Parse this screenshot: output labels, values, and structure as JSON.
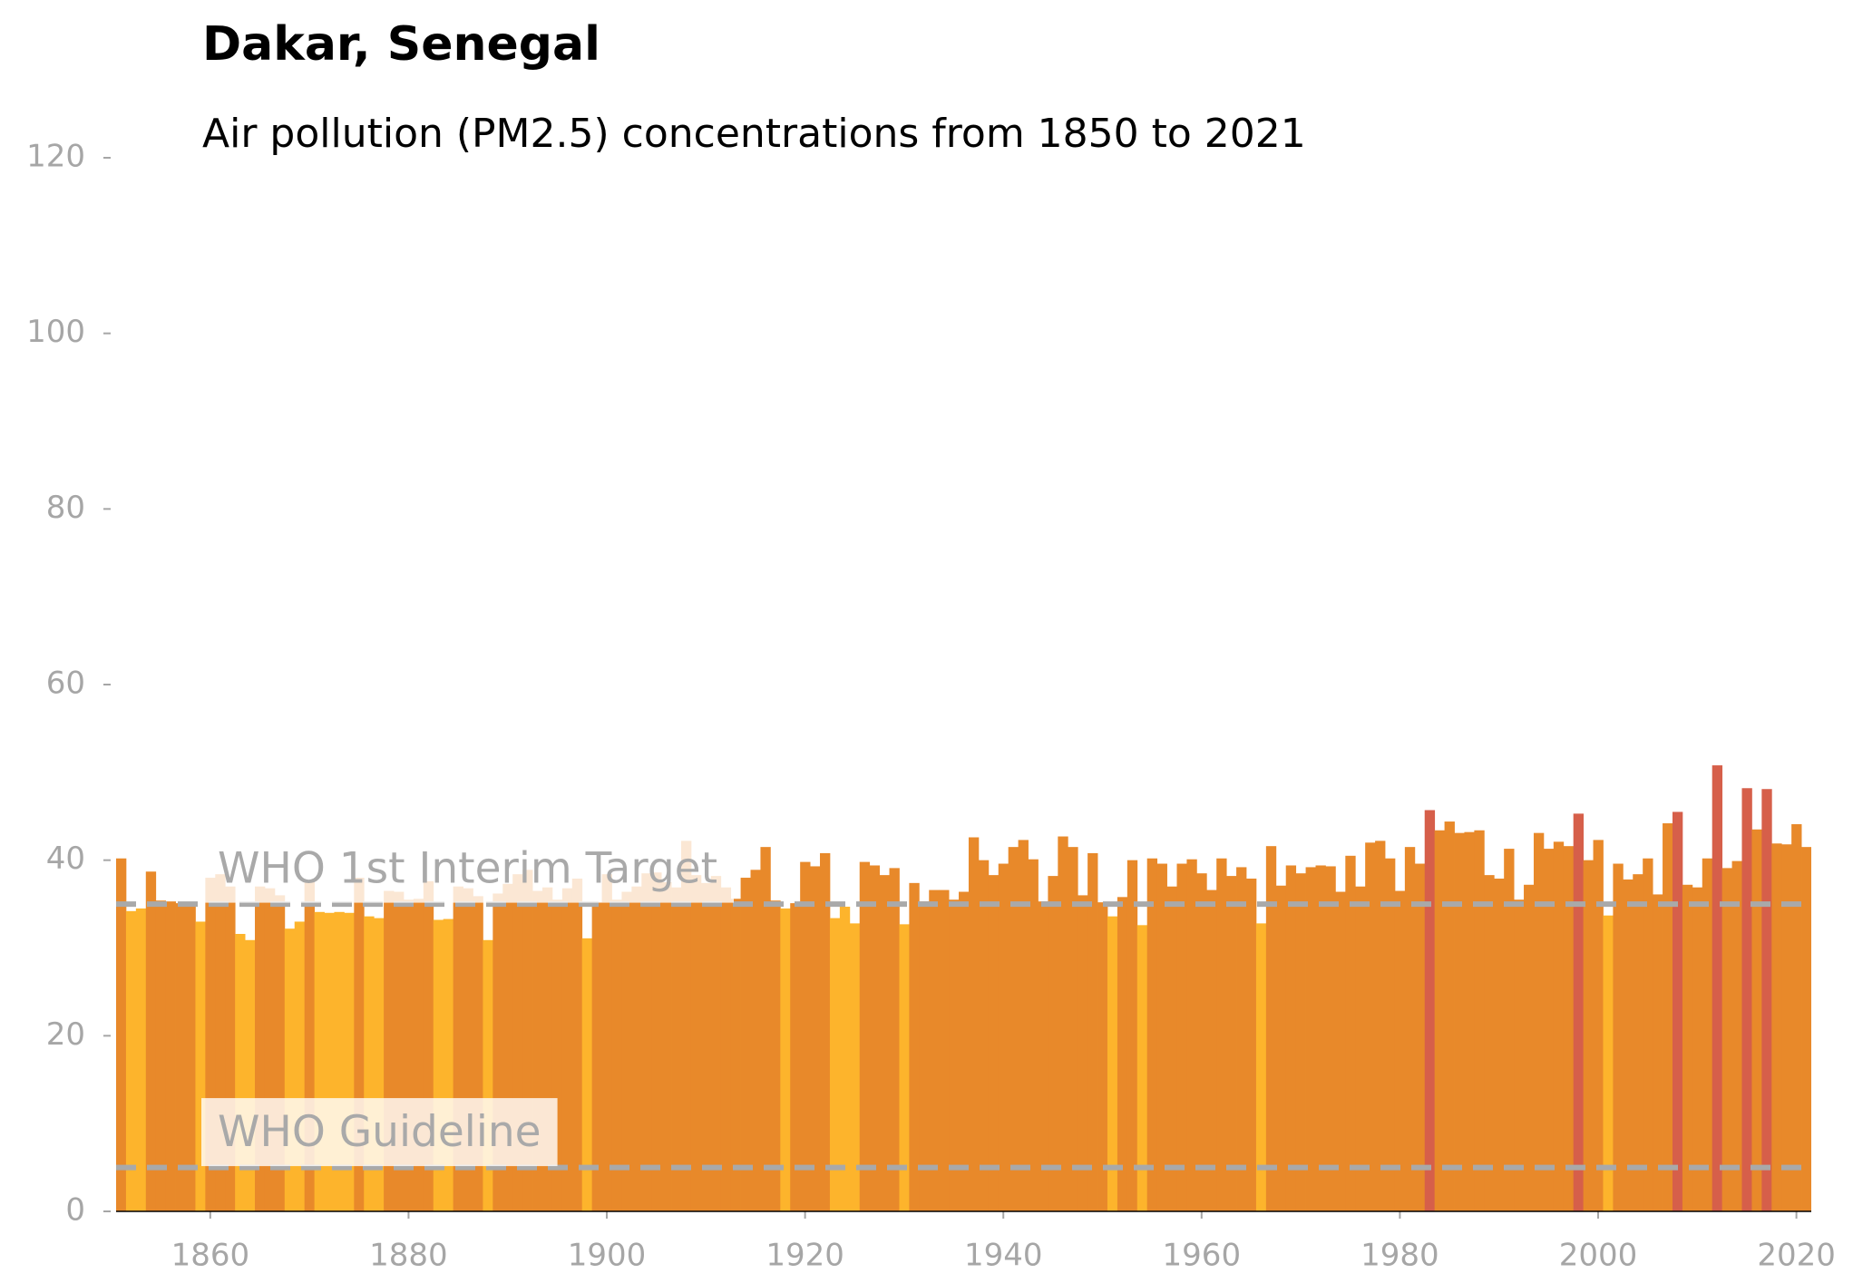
{
  "chart_data": {
    "type": "bar",
    "title": "Dakar, Senegal",
    "subtitle": "Air pollution (PM2.5) concentrations from 1850 to 2021",
    "x": [
      1850,
      1851,
      1852,
      1853,
      1854,
      1855,
      1856,
      1857,
      1858,
      1859,
      1860,
      1861,
      1862,
      1863,
      1864,
      1865,
      1866,
      1867,
      1868,
      1869,
      1870,
      1871,
      1872,
      1873,
      1874,
      1875,
      1876,
      1877,
      1878,
      1879,
      1880,
      1881,
      1882,
      1883,
      1884,
      1885,
      1886,
      1887,
      1888,
      1889,
      1890,
      1891,
      1892,
      1893,
      1894,
      1895,
      1896,
      1897,
      1898,
      1899,
      1900,
      1901,
      1902,
      1903,
      1904,
      1905,
      1906,
      1907,
      1908,
      1909,
      1910,
      1911,
      1912,
      1913,
      1914,
      1915,
      1916,
      1917,
      1918,
      1919,
      1920,
      1921,
      1922,
      1923,
      1924,
      1925,
      1926,
      1927,
      1928,
      1929,
      1930,
      1931,
      1932,
      1933,
      1934,
      1935,
      1936,
      1937,
      1938,
      1939,
      1940,
      1941,
      1942,
      1943,
      1944,
      1945,
      1946,
      1947,
      1948,
      1949,
      1950,
      1951,
      1952,
      1953,
      1954,
      1955,
      1956,
      1957,
      1958,
      1959,
      1960,
      1961,
      1962,
      1963,
      1964,
      1965,
      1966,
      1967,
      1968,
      1969,
      1970,
      1971,
      1972,
      1973,
      1974,
      1975,
      1976,
      1977,
      1978,
      1979,
      1980,
      1981,
      1982,
      1983,
      1984,
      1985,
      1986,
      1987,
      1988,
      1989,
      1990,
      1991,
      1992,
      1993,
      1994,
      1995,
      1996,
      1997,
      1998,
      1999,
      2000,
      2001,
      2002,
      2003,
      2004,
      2005,
      2006,
      2007,
      2008,
      2009,
      2010,
      2011,
      2012,
      2013,
      2014,
      2015,
      2016,
      2017,
      2018,
      2019,
      2020,
      2021
    ],
    "values": [
      38.2,
      40.2,
      34.2,
      34.5,
      38.7,
      35.4,
      35.3,
      35.1,
      35.2,
      33.0,
      38.0,
      38.4,
      37.0,
      31.6,
      30.9,
      37.0,
      36.8,
      36.0,
      32.2,
      33.0,
      37.5,
      34.1,
      34.0,
      34.1,
      34.0,
      38.0,
      33.6,
      33.4,
      36.5,
      36.4,
      35.5,
      35.6,
      37.6,
      33.2,
      33.3,
      37.0,
      36.8,
      35.9,
      30.9,
      36.2,
      37.3,
      38.4,
      38.9,
      36.5,
      36.9,
      35.5,
      36.8,
      37.9,
      31.1,
      35.2,
      38.4,
      35.5,
      36.4,
      37.0,
      38.5,
      38.6,
      37.5,
      36.9,
      42.2,
      38.3,
      37.4,
      38.2,
      36.9,
      35.6,
      38.0,
      38.9,
      41.5,
      35.4,
      34.5,
      35.1,
      39.8,
      39.3,
      40.8,
      33.4,
      34.7,
      32.8,
      39.8,
      39.4,
      38.3,
      39.1,
      32.7,
      37.4,
      35.3,
      36.6,
      36.6,
      35.5,
      36.4,
      42.6,
      40.0,
      38.3,
      39.6,
      41.5,
      42.3,
      40.1,
      35.3,
      38.2,
      42.7,
      41.5,
      36.0,
      40.8,
      35.2,
      33.6,
      35.8,
      40.0,
      32.6,
      40.2,
      39.6,
      37.0,
      39.6,
      40.1,
      38.5,
      36.6,
      40.2,
      38.2,
      39.2,
      37.9,
      32.8,
      41.6,
      37.1,
      39.4,
      38.5,
      39.2,
      39.4,
      39.3,
      36.4,
      40.5,
      37.0,
      42.0,
      42.2,
      40.2,
      36.5,
      41.5,
      39.6,
      45.7,
      43.4,
      44.4,
      43.1,
      43.2,
      43.4,
      38.3,
      37.9,
      41.3,
      35.5,
      37.2,
      43.1,
      41.3,
      42.1,
      41.6,
      45.3,
      40.0,
      42.3,
      33.7,
      39.6,
      37.8,
      38.4,
      40.2,
      36.1,
      44.2,
      45.5,
      37.2,
      36.9,
      40.2,
      50.8,
      39.1,
      39.9,
      48.2,
      43.5,
      48.1,
      41.9,
      41.8,
      44.1,
      41.5
    ],
    "colors": [
      "#e8892a",
      "#e8892a",
      "#fdb42c",
      "#fdb42c",
      "#e8892a",
      "#e8892a",
      "#e8892a",
      "#e8892a",
      "#e8892a",
      "#fdb42c",
      "#e8892a",
      "#e8892a",
      "#e8892a",
      "#fdb42c",
      "#fdb42c",
      "#e8892a",
      "#e8892a",
      "#e8892a",
      "#fdb42c",
      "#fdb42c",
      "#e8892a",
      "#fdb42c",
      "#fdb42c",
      "#fdb42c",
      "#fdb42c",
      "#e8892a",
      "#fdb42c",
      "#fdb42c",
      "#e8892a",
      "#e8892a",
      "#e8892a",
      "#e8892a",
      "#e8892a",
      "#fdb42c",
      "#fdb42c",
      "#e8892a",
      "#e8892a",
      "#e8892a",
      "#fdb42c",
      "#e8892a",
      "#e8892a",
      "#e8892a",
      "#e8892a",
      "#e8892a",
      "#e8892a",
      "#e8892a",
      "#e8892a",
      "#e8892a",
      "#fdb42c",
      "#e8892a",
      "#e8892a",
      "#e8892a",
      "#e8892a",
      "#e8892a",
      "#e8892a",
      "#e8892a",
      "#e8892a",
      "#e8892a",
      "#e8892a",
      "#e8892a",
      "#e8892a",
      "#e8892a",
      "#e8892a",
      "#e8892a",
      "#e8892a",
      "#e8892a",
      "#e8892a",
      "#e8892a",
      "#fdb42c",
      "#e8892a",
      "#e8892a",
      "#e8892a",
      "#e8892a",
      "#fdb42c",
      "#fdb42c",
      "#fdb42c",
      "#e8892a",
      "#e8892a",
      "#e8892a",
      "#e8892a",
      "#fdb42c",
      "#e8892a",
      "#e8892a",
      "#e8892a",
      "#e8892a",
      "#e8892a",
      "#e8892a",
      "#e8892a",
      "#e8892a",
      "#e8892a",
      "#e8892a",
      "#e8892a",
      "#e8892a",
      "#e8892a",
      "#e8892a",
      "#e8892a",
      "#e8892a",
      "#e8892a",
      "#e8892a",
      "#e8892a",
      "#e8892a",
      "#fdb42c",
      "#e8892a",
      "#e8892a",
      "#fdb42c",
      "#e8892a",
      "#e8892a",
      "#e8892a",
      "#e8892a",
      "#e8892a",
      "#e8892a",
      "#e8892a",
      "#e8892a",
      "#e8892a",
      "#e8892a",
      "#e8892a",
      "#fdb42c",
      "#e8892a",
      "#e8892a",
      "#e8892a",
      "#e8892a",
      "#e8892a",
      "#e8892a",
      "#e8892a",
      "#e8892a",
      "#e8892a",
      "#e8892a",
      "#e8892a",
      "#e8892a",
      "#e8892a",
      "#e8892a",
      "#e8892a",
      "#e8892a",
      "#d65f4a",
      "#e8892a",
      "#e8892a",
      "#e8892a",
      "#e8892a",
      "#e8892a",
      "#e8892a",
      "#e8892a",
      "#e8892a",
      "#e8892a",
      "#e8892a",
      "#e8892a",
      "#e8892a",
      "#e8892a",
      "#e8892a",
      "#d65f4a",
      "#e8892a",
      "#e8892a",
      "#fdb42c",
      "#e8892a",
      "#e8892a",
      "#e8892a",
      "#e8892a",
      "#e8892a",
      "#e8892a",
      "#d65f4a",
      "#e8892a",
      "#e8892a",
      "#e8892a",
      "#d65f4a",
      "#e8892a",
      "#e8892a",
      "#d65f4a",
      "#e8892a",
      "#d65f4a",
      "#e8892a",
      "#e8892a",
      "#e8892a",
      "#e8892a"
    ],
    "reference_lines": [
      {
        "value": 35,
        "label": "WHO 1st Interim Target"
      },
      {
        "value": 5,
        "label": "WHO Guideline"
      }
    ],
    "reference_color": "#a9a9a9",
    "xlim": [
      1850.5,
      2021.5
    ],
    "xticks": [
      1860,
      1880,
      1900,
      1920,
      1940,
      1960,
      1980,
      2000,
      2020
    ],
    "ylim": [
      0,
      120
    ],
    "yticks": [
      0,
      20,
      40,
      60,
      80,
      100,
      120
    ],
    "grid": false
  }
}
